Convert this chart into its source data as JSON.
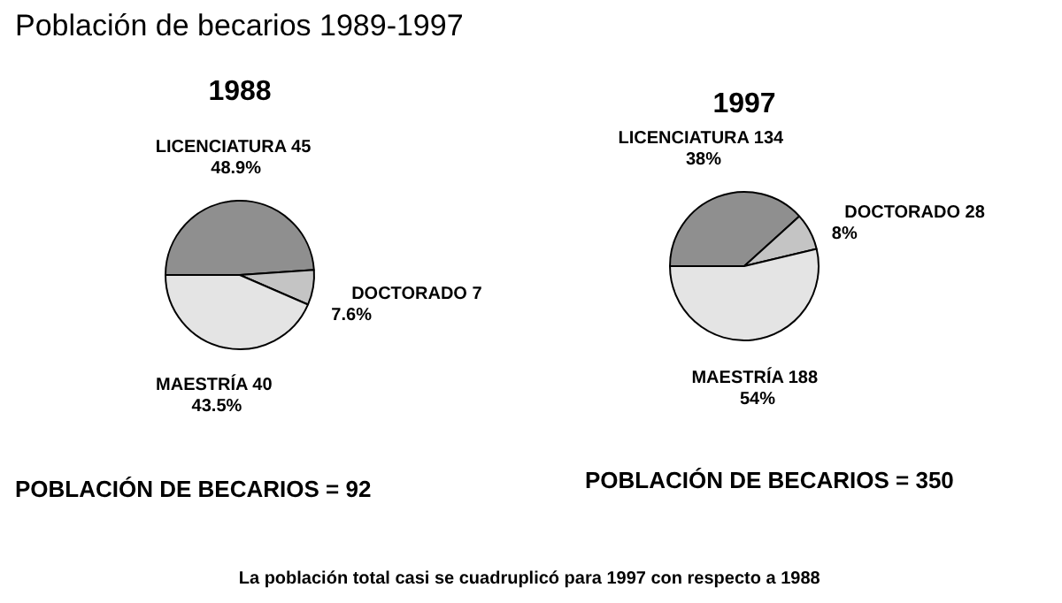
{
  "chart_data": [
    {
      "type": "pie",
      "title": "1988",
      "categories": [
        "LICENCIATURA",
        "DOCTORADO",
        "MAESTRÍA"
      ],
      "values": [
        45,
        7,
        40
      ],
      "colors": [
        "#8f8f8f",
        "#c4c4c4",
        "#e4e4e4"
      ],
      "value_labels": [
        "45\n48.9%",
        "7\n7.6%",
        "40\n43.5%"
      ],
      "annotations": [
        "Población de becarios 1989-1997",
        "POBLACIÓN DE BECARIOS = 92"
      ]
    },
    {
      "type": "pie",
      "title": "1997",
      "categories": [
        "LICENCIATURA",
        "DOCTORADO",
        "MAESTRÍA"
      ],
      "values": [
        134,
        28,
        188
      ],
      "colors": [
        "#8f8f8f",
        "#c4c4c4",
        "#e4e4e4"
      ],
      "value_labels": [
        "134\n38%",
        "28\n8%",
        "188\n54%"
      ],
      "annotations": [
        "POBLACIÓN DE BECARIOS = 350",
        "La población total casi se  cuadruplicó para 1997 con respecto a 1988"
      ]
    }
  ]
}
